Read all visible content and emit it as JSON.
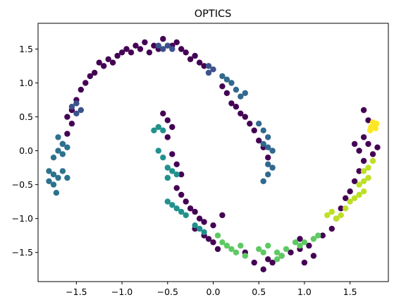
{
  "chart_data": {
    "type": "scatter",
    "title": "OPTICS",
    "xlabel": "",
    "ylabel": "",
    "xlim": [
      -1.92,
      1.92
    ],
    "ylim": [
      -1.93,
      1.88
    ],
    "xticks": [
      -1.5,
      -1.0,
      -0.5,
      0.0,
      0.5,
      1.0,
      1.5
    ],
    "xtick_labels": [
      "−1.5",
      "−1.0",
      "−0.5",
      "0.0",
      "0.5",
      "1.0",
      "1.5"
    ],
    "yticks": [
      -1.5,
      -1.0,
      -0.5,
      0.0,
      0.5,
      1.0,
      1.5
    ],
    "ytick_labels": [
      "−1.5",
      "−1.0",
      "−0.5",
      "0.0",
      "0.5",
      "1.0",
      "1.5"
    ],
    "grid": false,
    "legend": "none",
    "colors": {
      "noise": "#440154",
      "cluster_top_left": "#3b528b",
      "cluster_right_arm": "#31688e",
      "cluster_left_tip": "#2c728e",
      "cluster_inner_lower": "#21918c",
      "cluster_bottom": "#5ec962",
      "cluster_lower_right": "#bddf26",
      "cluster_right_tip": "#fde725"
    },
    "series": [
      {
        "cluster": "noise",
        "points": [
          [
            -1.55,
            0.6
          ],
          [
            -1.5,
            0.75
          ],
          [
            -1.45,
            0.9
          ],
          [
            -1.4,
            1.0
          ],
          [
            -1.35,
            1.1
          ],
          [
            -1.3,
            1.15
          ],
          [
            -1.25,
            1.3
          ],
          [
            -1.2,
            1.25
          ],
          [
            -1.15,
            1.35
          ],
          [
            -1.1,
            1.3
          ],
          [
            -1.05,
            1.4
          ],
          [
            -1.0,
            1.45
          ],
          [
            -0.95,
            1.5
          ],
          [
            -0.9,
            1.45
          ],
          [
            -0.85,
            1.55
          ],
          [
            -0.8,
            1.5
          ],
          [
            -0.75,
            1.6
          ],
          [
            -0.7,
            1.45
          ],
          [
            -0.65,
            1.55
          ],
          [
            -0.6,
            1.5
          ],
          [
            -0.55,
            1.65
          ],
          [
            -0.45,
            1.55
          ],
          [
            -0.4,
            1.6
          ],
          [
            -0.35,
            1.5
          ],
          [
            -0.3,
            1.45
          ],
          [
            -0.25,
            1.35
          ],
          [
            -0.2,
            1.4
          ],
          [
            -0.15,
            1.3
          ],
          [
            -0.1,
            1.25
          ],
          [
            0.1,
            0.95
          ],
          [
            0.15,
            0.85
          ],
          [
            0.2,
            0.7
          ],
          [
            0.25,
            0.65
          ],
          [
            0.3,
            0.55
          ],
          [
            0.35,
            0.5
          ],
          [
            0.4,
            0.4
          ],
          [
            0.45,
            0.3
          ],
          [
            0.5,
            0.15
          ],
          [
            0.55,
            0.05
          ],
          [
            0.6,
            -0.1
          ],
          [
            -0.55,
            0.55
          ],
          [
            -0.5,
            0.45
          ],
          [
            -0.45,
            0.35
          ],
          [
            -0.5,
            0.2
          ],
          [
            -0.45,
            -0.05
          ],
          [
            -0.4,
            -0.2
          ],
          [
            -0.35,
            -0.35
          ],
          [
            -0.4,
            -0.55
          ],
          [
            -0.35,
            -0.65
          ],
          [
            -0.3,
            -0.75
          ],
          [
            -0.25,
            -0.85
          ],
          [
            -0.2,
            -0.9
          ],
          [
            -0.15,
            -1.0
          ],
          [
            -0.1,
            -1.05
          ],
          [
            -0.2,
            -1.15
          ],
          [
            -0.1,
            -1.25
          ],
          [
            0.0,
            -1.35
          ],
          [
            0.05,
            -1.45
          ],
          [
            -0.05,
            -1.3
          ],
          [
            0.35,
            -1.5
          ],
          [
            0.45,
            -1.65
          ],
          [
            0.55,
            -1.75
          ],
          [
            0.65,
            -1.65
          ],
          [
            0.75,
            -1.55
          ],
          [
            0.85,
            -1.5
          ],
          [
            0.95,
            -1.45
          ],
          [
            1.05,
            -1.4
          ],
          [
            1.1,
            -1.55
          ],
          [
            1.2,
            -1.25
          ],
          [
            1.3,
            -1.15
          ],
          [
            1.35,
            -1.0
          ],
          [
            1.4,
            -0.85
          ],
          [
            1.45,
            -0.7
          ],
          [
            1.5,
            -0.6
          ],
          [
            1.55,
            -0.45
          ],
          [
            1.6,
            -0.3
          ],
          [
            1.65,
            -0.15
          ],
          [
            1.55,
            0.1
          ],
          [
            1.6,
            0.0
          ],
          [
            1.65,
            0.2
          ],
          [
            1.7,
            0.1
          ],
          [
            1.75,
            -0.05
          ],
          [
            1.8,
            0.05
          ],
          [
            1.65,
            0.6
          ],
          [
            1.7,
            0.45
          ],
          [
            -1.65,
            0.1
          ],
          [
            -1.6,
            0.25
          ],
          [
            -1.55,
            0.4
          ],
          [
            -1.6,
            0.5
          ],
          [
            0.1,
            -0.95
          ],
          [
            0.0,
            -1.1
          ],
          [
            1.0,
            -1.65
          ],
          [
            0.6,
            -1.6
          ],
          [
            0.95,
            -1.3
          ]
        ]
      },
      {
        "cluster": "cluster_top_left",
        "points": [
          [
            -0.6,
            1.55
          ],
          [
            -0.55,
            1.5
          ],
          [
            -0.5,
            1.55
          ],
          [
            -0.45,
            1.5
          ],
          [
            -0.05,
            1.25
          ],
          [
            -0.05,
            1.15
          ],
          [
            0.0,
            1.2
          ],
          [
            -1.55,
            0.65
          ],
          [
            -1.5,
            0.55
          ],
          [
            -1.45,
            0.6
          ],
          [
            -1.5,
            0.7
          ]
        ]
      },
      {
        "cluster": "cluster_right_arm",
        "points": [
          [
            0.1,
            1.1
          ],
          [
            0.15,
            1.05
          ],
          [
            0.2,
            1.0
          ],
          [
            0.25,
            0.9
          ],
          [
            0.3,
            0.8
          ],
          [
            0.35,
            0.85
          ],
          [
            0.5,
            0.4
          ],
          [
            0.55,
            0.3
          ],
          [
            0.6,
            0.2
          ],
          [
            0.55,
            0.1
          ],
          [
            0.6,
            0.05
          ],
          [
            0.65,
            0.0
          ],
          [
            0.6,
            -0.2
          ],
          [
            0.65,
            -0.25
          ],
          [
            0.6,
            -0.35
          ],
          [
            0.55,
            -0.45
          ]
        ]
      },
      {
        "cluster": "cluster_left_tip",
        "points": [
          [
            -1.7,
            0.2
          ],
          [
            -1.65,
            0.1
          ],
          [
            -1.7,
            0.0
          ],
          [
            -1.65,
            -0.05
          ],
          [
            -1.75,
            -0.1
          ],
          [
            -1.6,
            0.05
          ],
          [
            -1.8,
            -0.3
          ],
          [
            -1.75,
            -0.35
          ],
          [
            -1.7,
            -0.4
          ],
          [
            -1.8,
            -0.45
          ],
          [
            -1.75,
            -0.5
          ],
          [
            -1.72,
            -0.62
          ],
          [
            -1.65,
            -0.3
          ],
          [
            -1.6,
            -0.4
          ]
        ]
      },
      {
        "cluster": "cluster_inner_lower",
        "points": [
          [
            -0.65,
            0.3
          ],
          [
            -0.6,
            0.35
          ],
          [
            -0.55,
            0.3
          ],
          [
            -0.6,
            0.0
          ],
          [
            -0.55,
            -0.1
          ],
          [
            -0.5,
            -0.25
          ],
          [
            -0.45,
            -0.3
          ],
          [
            -0.4,
            -0.35
          ],
          [
            -0.5,
            -0.4
          ],
          [
            -0.5,
            -0.75
          ],
          [
            -0.45,
            -0.8
          ],
          [
            -0.4,
            -0.85
          ],
          [
            -0.35,
            -0.9
          ],
          [
            -0.3,
            -0.95
          ],
          [
            -0.2,
            -1.1
          ],
          [
            -0.15,
            -1.15
          ],
          [
            -0.1,
            -1.2
          ]
        ]
      },
      {
        "cluster": "cluster_bottom",
        "points": [
          [
            0.05,
            -1.25
          ],
          [
            0.1,
            -1.35
          ],
          [
            0.15,
            -1.4
          ],
          [
            0.2,
            -1.45
          ],
          [
            0.25,
            -1.5
          ],
          [
            0.3,
            -1.4
          ],
          [
            0.35,
            -1.55
          ],
          [
            0.5,
            -1.45
          ],
          [
            0.55,
            -1.5
          ],
          [
            0.6,
            -1.4
          ],
          [
            0.7,
            -1.5
          ],
          [
            0.75,
            -1.55
          ],
          [
            0.8,
            -1.45
          ],
          [
            0.7,
            -1.6
          ],
          [
            0.9,
            -1.35
          ],
          [
            0.95,
            -1.4
          ],
          [
            1.0,
            -1.35
          ],
          [
            1.1,
            -1.3
          ],
          [
            1.15,
            -1.25
          ]
        ]
      },
      {
        "cluster": "cluster_lower_right",
        "points": [
          [
            1.25,
            -0.95
          ],
          [
            1.3,
            -0.9
          ],
          [
            1.35,
            -1.0
          ],
          [
            1.4,
            -0.95
          ],
          [
            1.45,
            -0.85
          ],
          [
            1.5,
            -0.75
          ],
          [
            1.55,
            -0.7
          ],
          [
            1.6,
            -0.65
          ],
          [
            1.65,
            -0.6
          ],
          [
            1.6,
            -0.5
          ],
          [
            1.65,
            -0.45
          ],
          [
            1.7,
            -0.4
          ],
          [
            1.65,
            -0.3
          ],
          [
            1.7,
            -0.25
          ],
          [
            1.75,
            -0.15
          ]
        ]
      },
      {
        "cluster": "cluster_right_tip",
        "points": [
          [
            1.73,
            0.35
          ],
          [
            1.76,
            0.38
          ],
          [
            1.78,
            0.33
          ],
          [
            1.75,
            0.42
          ],
          [
            1.72,
            0.3
          ],
          [
            1.79,
            0.4
          ]
        ]
      }
    ]
  }
}
